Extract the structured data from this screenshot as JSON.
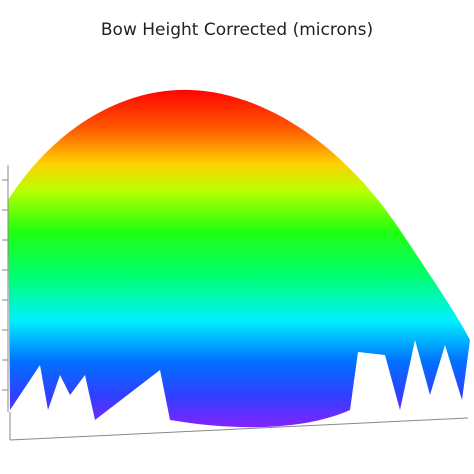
{
  "chart_data": {
    "type": "surface",
    "title": "Bow Height Corrected (microns)"
  }
}
